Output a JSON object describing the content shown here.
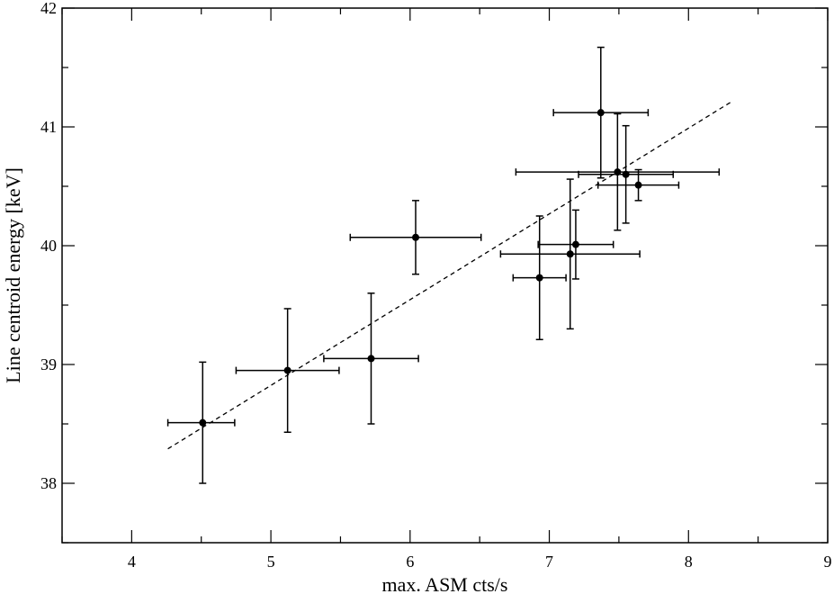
{
  "chart_data": {
    "type": "scatter",
    "xlabel": "max. ASM cts/s",
    "ylabel": "Line centroid energy  [keV]",
    "xlim": [
      3.5,
      9
    ],
    "ylim": [
      37.5,
      42
    ],
    "xticks": [
      4,
      5,
      6,
      7,
      8,
      9
    ],
    "yticks": [
      38,
      39,
      40,
      41,
      42
    ],
    "grid": false,
    "legend": "none",
    "points": [
      {
        "x": 4.51,
        "y": 38.51,
        "xerr": [
          0.25,
          0.23
        ],
        "yerr": [
          0.51,
          0.51
        ]
      },
      {
        "x": 5.12,
        "y": 38.95,
        "xerr": [
          0.37,
          0.37
        ],
        "yerr": [
          0.52,
          0.52
        ]
      },
      {
        "x": 5.72,
        "y": 39.05,
        "xerr": [
          0.34,
          0.34
        ],
        "yerr": [
          0.55,
          0.55
        ]
      },
      {
        "x": 6.04,
        "y": 40.07,
        "xerr": [
          0.47,
          0.47
        ],
        "yerr": [
          0.31,
          0.31
        ]
      },
      {
        "x": 6.93,
        "y": 39.73,
        "xerr": [
          0.19,
          0.19
        ],
        "yerr": [
          0.52,
          0.52
        ]
      },
      {
        "x": 7.15,
        "y": 39.93,
        "xerr": [
          0.5,
          0.5
        ],
        "yerr": [
          0.63,
          0.63
        ]
      },
      {
        "x": 7.19,
        "y": 40.01,
        "xerr": [
          0.27,
          0.27
        ],
        "yerr": [
          0.29,
          0.29
        ]
      },
      {
        "x": 7.37,
        "y": 41.12,
        "xerr": [
          0.34,
          0.34
        ],
        "yerr": [
          0.55,
          0.55
        ]
      },
      {
        "x": 7.49,
        "y": 40.62,
        "xerr": [
          0.73,
          0.73
        ],
        "yerr": [
          0.49,
          0.49
        ]
      },
      {
        "x": 7.55,
        "y": 40.6,
        "xerr": [
          0.34,
          0.34
        ],
        "yerr": [
          0.41,
          0.41
        ]
      },
      {
        "x": 7.64,
        "y": 40.51,
        "xerr": [
          0.29,
          0.29
        ],
        "yerr": [
          0.13,
          0.13
        ]
      }
    ],
    "fit_line": {
      "style": "dashed",
      "x": [
        4.26,
        8.32
      ],
      "y": [
        38.29,
        41.22
      ]
    }
  }
}
